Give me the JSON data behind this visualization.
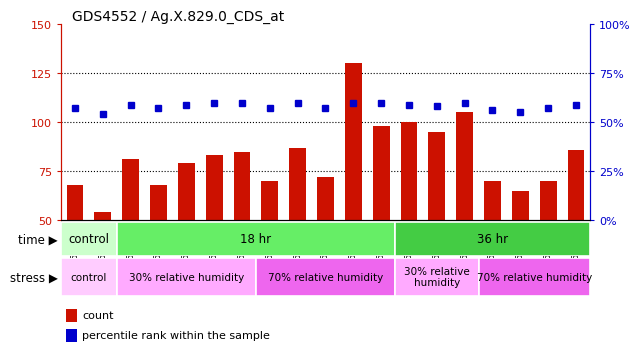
{
  "title": "GDS4552 / Ag.X.829.0_CDS_at",
  "samples": [
    "GSM624288",
    "GSM624289",
    "GSM624290",
    "GSM624291",
    "GSM624292",
    "GSM624293",
    "GSM624294",
    "GSM624295",
    "GSM624296",
    "GSM624297",
    "GSM624298",
    "GSM624299",
    "GSM624300",
    "GSM624301",
    "GSM624302",
    "GSM624303",
    "GSM624304",
    "GSM624305",
    "GSM624306"
  ],
  "counts": [
    68,
    54,
    81,
    68,
    79,
    83,
    85,
    70,
    87,
    72,
    130,
    98,
    100,
    95,
    105,
    70,
    65,
    70,
    86
  ],
  "percentile_left_scale": [
    107,
    104,
    109,
    107,
    109,
    110,
    110,
    107,
    110,
    107,
    110,
    110,
    109,
    108,
    110,
    106,
    105,
    107,
    109
  ],
  "bar_color": "#cc1100",
  "dot_color": "#0000cc",
  "left_ylim": [
    50,
    150
  ],
  "right_ylim": [
    0,
    100
  ],
  "left_yticks": [
    50,
    75,
    100,
    125,
    150
  ],
  "right_yticks": [
    0,
    25,
    50,
    75,
    100
  ],
  "right_yticklabels": [
    "0%",
    "25%",
    "50%",
    "75%",
    "100%"
  ],
  "hline_values": [
    75,
    100,
    125
  ],
  "time_groups": [
    {
      "label": "control",
      "start": 0,
      "end": 2,
      "color": "#ccffcc"
    },
    {
      "label": "18 hr",
      "start": 2,
      "end": 12,
      "color": "#66ee66"
    },
    {
      "label": "36 hr",
      "start": 12,
      "end": 19,
      "color": "#44cc44"
    }
  ],
  "stress_groups": [
    {
      "label": "control",
      "start": 0,
      "end": 2,
      "color": "#ffccff"
    },
    {
      "label": "30% relative humidity",
      "start": 2,
      "end": 7,
      "color": "#ffaaff"
    },
    {
      "label": "70% relative humidity",
      "start": 7,
      "end": 12,
      "color": "#ee66ee"
    },
    {
      "label": "30% relative\nhumidity",
      "start": 12,
      "end": 15,
      "color": "#ffaaff"
    },
    {
      "label": "70% relative humidity",
      "start": 15,
      "end": 19,
      "color": "#ee66ee"
    }
  ],
  "legend_count_label": "count",
  "legend_pct_label": "percentile rank within the sample",
  "title_fontsize": 10,
  "left_tick_color": "#cc1100",
  "right_tick_color": "#0000cc",
  "bar_bottom": 50,
  "xlim_left": -0.5,
  "xlim_right": 18.5
}
